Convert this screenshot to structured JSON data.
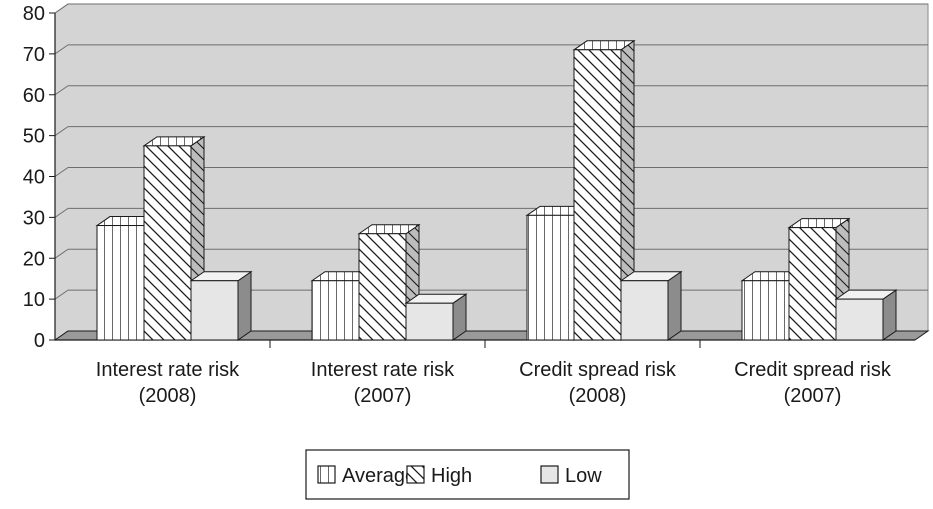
{
  "chart_data": {
    "type": "bar",
    "categories": [
      [
        "Interest rate risk",
        "(2008)"
      ],
      [
        "Interest rate risk",
        "(2007)"
      ],
      [
        "Credit spread risk",
        "(2008)"
      ],
      [
        "Credit spread risk",
        "(2007)"
      ]
    ],
    "series": [
      {
        "name": "Average",
        "values": [
          28,
          14.5,
          30.5,
          14.5
        ],
        "pattern": "vertical-stripes"
      },
      {
        "name": "High",
        "values": [
          47.5,
          26,
          71,
          27.5
        ],
        "pattern": "diagonal-stripes"
      },
      {
        "name": "Low",
        "values": [
          14.5,
          9,
          14.5,
          10
        ],
        "pattern": "solid-light-gray"
      }
    ],
    "ylim": [
      0,
      80
    ],
    "yticks": [
      0,
      10,
      20,
      30,
      40,
      50,
      60,
      70,
      80
    ],
    "grid": true,
    "legend_position": "bottom-center",
    "three_d": true
  },
  "colors": {
    "wall": "#d4d4d4",
    "floor": "#9a9a9a",
    "gridline": "#6e6e6e",
    "bar_fill": "#ffffff",
    "low_fill": "#e6e6e6",
    "stroke": "#1a1a1a"
  }
}
